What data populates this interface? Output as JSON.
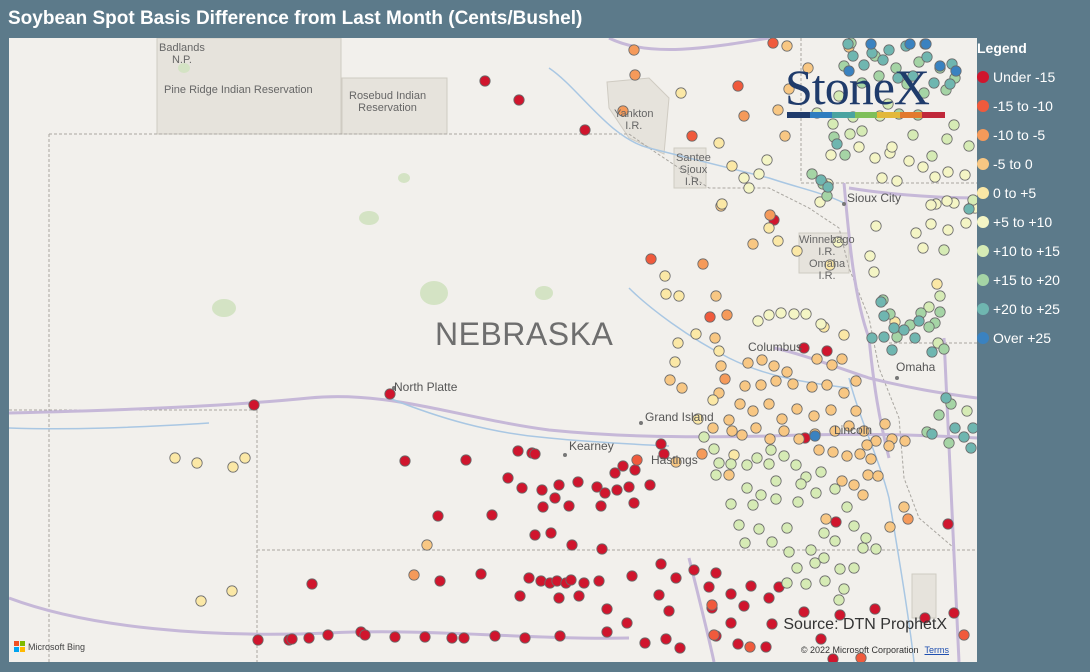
{
  "title": "Soybean Spot Basis Difference from Last Month (Cents/Bushel)",
  "map": {
    "state_label": "NEBRASKA",
    "cities": [
      "North Platte",
      "Grand Island",
      "Kearney",
      "Hastings",
      "Columbus",
      "Omaha",
      "Sioux City",
      "Lincoln"
    ],
    "places": [
      "Badlands\nN.P.",
      "Pine Ridge Indian Reservation",
      "Rosebud Indian\nReservation",
      "Yankton\nI.R.",
      "Santee\nSioux\nI.R.",
      "Winnebago\nI.R.",
      "Omaha\nI.R."
    ]
  },
  "logo": {
    "text": "StoneX",
    "stripe_colors": [
      "#1f3b6b",
      "#2f7dbf",
      "#4aa3a0",
      "#7fbf5a",
      "#e2b83a",
      "#e27a2e",
      "#c0283a"
    ]
  },
  "legend": {
    "title": "Legend",
    "items": [
      {
        "label": "Under -15",
        "color": "#d0152d"
      },
      {
        "label": "-15 to -10",
        "color": "#f05a3c"
      },
      {
        "label": "-10 to -5",
        "color": "#f59a5a"
      },
      {
        "label": "-5 to 0",
        "color": "#f8c783"
      },
      {
        "label": "0 to +5",
        "color": "#fbe8a6"
      },
      {
        "label": "+5 to +10",
        "color": "#f4f5c5"
      },
      {
        "label": "+10 to +15",
        "color": "#d6ebb5"
      },
      {
        "label": "+15 to +20",
        "color": "#a5d4a5"
      },
      {
        "label": "+20 to +25",
        "color": "#6fb6b0"
      },
      {
        "label": "Over +25",
        "color": "#3a82c0"
      }
    ]
  },
  "source": "Source: DTN ProphetX",
  "copyright": "© 2022 Microsoft Corporation",
  "terms": "Terms",
  "bing": "Microsoft Bing",
  "dots": [
    [
      476,
      43,
      0
    ],
    [
      510,
      62,
      0
    ],
    [
      576,
      92,
      0
    ],
    [
      245,
      367,
      0
    ],
    [
      381,
      356,
      0
    ],
    [
      396,
      423,
      0
    ],
    [
      457,
      422,
      0
    ],
    [
      509,
      413,
      0
    ],
    [
      523,
      415,
      0
    ],
    [
      526,
      416,
      0
    ],
    [
      499,
      440,
      0
    ],
    [
      513,
      450,
      0
    ],
    [
      533,
      452,
      0
    ],
    [
      550,
      447,
      0
    ],
    [
      569,
      444,
      0
    ],
    [
      588,
      449,
      0
    ],
    [
      614,
      428,
      0
    ],
    [
      626,
      432,
      0
    ],
    [
      652,
      406,
      0
    ],
    [
      606,
      435,
      0
    ],
    [
      534,
      469,
      0
    ],
    [
      546,
      460,
      0
    ],
    [
      560,
      468,
      0
    ],
    [
      592,
      468,
      0
    ],
    [
      596,
      455,
      0
    ],
    [
      608,
      452,
      0
    ],
    [
      620,
      449,
      0
    ],
    [
      625,
      465,
      0
    ],
    [
      641,
      447,
      0
    ],
    [
      655,
      416,
      0
    ],
    [
      429,
      478,
      0
    ],
    [
      483,
      477,
      0
    ],
    [
      526,
      497,
      0
    ],
    [
      542,
      495,
      0
    ],
    [
      563,
      507,
      0
    ],
    [
      593,
      511,
      0
    ],
    [
      303,
      546,
      0
    ],
    [
      431,
      543,
      0
    ],
    [
      472,
      536,
      0
    ],
    [
      520,
      540,
      0
    ],
    [
      532,
      543,
      0
    ],
    [
      541,
      545,
      0
    ],
    [
      548,
      543,
      0
    ],
    [
      557,
      545,
      0
    ],
    [
      562,
      542,
      0
    ],
    [
      575,
      545,
      0
    ],
    [
      590,
      543,
      0
    ],
    [
      623,
      538,
      0
    ],
    [
      652,
      526,
      0
    ],
    [
      667,
      540,
      0
    ],
    [
      685,
      532,
      0
    ],
    [
      700,
      549,
      0
    ],
    [
      707,
      535,
      0
    ],
    [
      722,
      556,
      0
    ],
    [
      735,
      568,
      0
    ],
    [
      742,
      548,
      0
    ],
    [
      760,
      560,
      0
    ],
    [
      770,
      549,
      0
    ],
    [
      511,
      558,
      0
    ],
    [
      550,
      560,
      0
    ],
    [
      570,
      558,
      0
    ],
    [
      598,
      571,
      0
    ],
    [
      650,
      557,
      0
    ],
    [
      660,
      573,
      0
    ],
    [
      703,
      570,
      0
    ],
    [
      722,
      585,
      0
    ],
    [
      763,
      586,
      0
    ],
    [
      795,
      574,
      0
    ],
    [
      831,
      577,
      0
    ],
    [
      866,
      571,
      0
    ],
    [
      916,
      580,
      0
    ],
    [
      945,
      575,
      0
    ],
    [
      249,
      602,
      0
    ],
    [
      280,
      602,
      0
    ],
    [
      283,
      601,
      0
    ],
    [
      300,
      600,
      0
    ],
    [
      319,
      597,
      0
    ],
    [
      352,
      594,
      0
    ],
    [
      356,
      597,
      0
    ],
    [
      386,
      599,
      0
    ],
    [
      416,
      599,
      0
    ],
    [
      443,
      600,
      0
    ],
    [
      455,
      600,
      0
    ],
    [
      486,
      598,
      0
    ],
    [
      516,
      600,
      0
    ],
    [
      551,
      598,
      0
    ],
    [
      598,
      594,
      0
    ],
    [
      618,
      585,
      0
    ],
    [
      636,
      605,
      0
    ],
    [
      657,
      601,
      0
    ],
    [
      671,
      610,
      0
    ],
    [
      707,
      598,
      0
    ],
    [
      729,
      606,
      0
    ],
    [
      757,
      609,
      0
    ],
    [
      812,
      601,
      0
    ],
    [
      824,
      621,
      0
    ],
    [
      765,
      182,
      0
    ],
    [
      795,
      310,
      0
    ],
    [
      818,
      313,
      0
    ],
    [
      827,
      484,
      0
    ],
    [
      939,
      486,
      0
    ],
    [
      796,
      400,
      0
    ],
    [
      764,
      5,
      1
    ],
    [
      683,
      98,
      1
    ],
    [
      729,
      48,
      1
    ],
    [
      642,
      221,
      1
    ],
    [
      701,
      279,
      1
    ],
    [
      628,
      422,
      1
    ],
    [
      703,
      567,
      1
    ],
    [
      741,
      609,
      1
    ],
    [
      852,
      620,
      1
    ],
    [
      955,
      597,
      1
    ],
    [
      705,
      597,
      1
    ],
    [
      625,
      12,
      2
    ],
    [
      626,
      37,
      2
    ],
    [
      735,
      78,
      2
    ],
    [
      761,
      177,
      2
    ],
    [
      694,
      226,
      2
    ],
    [
      718,
      277,
      2
    ],
    [
      716,
      341,
      2
    ],
    [
      405,
      537,
      2
    ],
    [
      693,
      416,
      2
    ],
    [
      899,
      481,
      2
    ],
    [
      614,
      73,
      2
    ],
    [
      778,
      8,
      3
    ],
    [
      840,
      9,
      3
    ],
    [
      799,
      30,
      3
    ],
    [
      780,
      51,
      3
    ],
    [
      769,
      72,
      3
    ],
    [
      776,
      98,
      3
    ],
    [
      712,
      168,
      3
    ],
    [
      744,
      206,
      3
    ],
    [
      707,
      258,
      3
    ],
    [
      706,
      300,
      3
    ],
    [
      673,
      350,
      3
    ],
    [
      661,
      342,
      3
    ],
    [
      712,
      328,
      3
    ],
    [
      739,
      325,
      3
    ],
    [
      753,
      322,
      3
    ],
    [
      765,
      328,
      3
    ],
    [
      778,
      334,
      3
    ],
    [
      808,
      321,
      3
    ],
    [
      823,
      327,
      3
    ],
    [
      833,
      321,
      3
    ],
    [
      736,
      348,
      3
    ],
    [
      752,
      347,
      3
    ],
    [
      767,
      343,
      3
    ],
    [
      784,
      346,
      3
    ],
    [
      803,
      349,
      3
    ],
    [
      818,
      347,
      3
    ],
    [
      835,
      355,
      3
    ],
    [
      847,
      343,
      3
    ],
    [
      710,
      355,
      3
    ],
    [
      720,
      382,
      3
    ],
    [
      731,
      366,
      3
    ],
    [
      744,
      373,
      3
    ],
    [
      760,
      366,
      3
    ],
    [
      773,
      381,
      3
    ],
    [
      788,
      371,
      3
    ],
    [
      805,
      378,
      3
    ],
    [
      822,
      372,
      3
    ],
    [
      847,
      373,
      3
    ],
    [
      733,
      397,
      3
    ],
    [
      747,
      390,
      3
    ],
    [
      761,
      401,
      3
    ],
    [
      775,
      393,
      3
    ],
    [
      790,
      401,
      3
    ],
    [
      806,
      396,
      3
    ],
    [
      826,
      393,
      3
    ],
    [
      840,
      388,
      3
    ],
    [
      855,
      393,
      3
    ],
    [
      867,
      403,
      3
    ],
    [
      876,
      386,
      3
    ],
    [
      883,
      401,
      3
    ],
    [
      896,
      403,
      3
    ],
    [
      810,
      412,
      3
    ],
    [
      824,
      414,
      3
    ],
    [
      838,
      418,
      3
    ],
    [
      851,
      416,
      3
    ],
    [
      858,
      407,
      3
    ],
    [
      862,
      421,
      3
    ],
    [
      880,
      408,
      3
    ],
    [
      859,
      437,
      3
    ],
    [
      845,
      447,
      3
    ],
    [
      833,
      443,
      3
    ],
    [
      854,
      457,
      3
    ],
    [
      817,
      481,
      3
    ],
    [
      881,
      489,
      3
    ],
    [
      895,
      469,
      3
    ],
    [
      720,
      437,
      3
    ],
    [
      723,
      393,
      3
    ],
    [
      704,
      390,
      3
    ],
    [
      667,
      424,
      3
    ],
    [
      418,
      507,
      3
    ],
    [
      869,
      438,
      3
    ],
    [
      672,
      55,
      4
    ],
    [
      710,
      105,
      4
    ],
    [
      723,
      128,
      4
    ],
    [
      713,
      166,
      4
    ],
    [
      760,
      190,
      4
    ],
    [
      769,
      203,
      4
    ],
    [
      788,
      213,
      4
    ],
    [
      821,
      227,
      4
    ],
    [
      656,
      238,
      4
    ],
    [
      657,
      256,
      4
    ],
    [
      670,
      258,
      4
    ],
    [
      669,
      305,
      4
    ],
    [
      666,
      324,
      4
    ],
    [
      710,
      313,
      4
    ],
    [
      687,
      296,
      4
    ],
    [
      815,
      289,
      4
    ],
    [
      835,
      297,
      4
    ],
    [
      886,
      284,
      4
    ],
    [
      166,
      420,
      4
    ],
    [
      188,
      425,
      4
    ],
    [
      224,
      429,
      4
    ],
    [
      236,
      420,
      4
    ],
    [
      192,
      563,
      4
    ],
    [
      223,
      553,
      4
    ],
    [
      704,
      362,
      4
    ],
    [
      689,
      381,
      4
    ],
    [
      725,
      417,
      4
    ],
    [
      928,
      246,
      4
    ],
    [
      750,
      136,
      5
    ],
    [
      758,
      122,
      5
    ],
    [
      740,
      150,
      5
    ],
    [
      735,
      140,
      5
    ],
    [
      749,
      283,
      5
    ],
    [
      760,
      277,
      5
    ],
    [
      772,
      275,
      5
    ],
    [
      785,
      276,
      5
    ],
    [
      797,
      276,
      5
    ],
    [
      812,
      286,
      5
    ],
    [
      873,
      140,
      5
    ],
    [
      881,
      115,
      5
    ],
    [
      888,
      143,
      5
    ],
    [
      900,
      123,
      5
    ],
    [
      914,
      129,
      5
    ],
    [
      926,
      139,
      5
    ],
    [
      939,
      134,
      5
    ],
    [
      956,
      137,
      5
    ],
    [
      945,
      165,
      5
    ],
    [
      938,
      163,
      5
    ],
    [
      927,
      166,
      5
    ],
    [
      964,
      167,
      5
    ],
    [
      922,
      186,
      5
    ],
    [
      939,
      192,
      5
    ],
    [
      957,
      185,
      5
    ],
    [
      966,
      170,
      5
    ],
    [
      907,
      195,
      5
    ],
    [
      914,
      210,
      5
    ],
    [
      867,
      188,
      5
    ],
    [
      861,
      218,
      5
    ],
    [
      865,
      234,
      5
    ],
    [
      829,
      204,
      5
    ],
    [
      811,
      164,
      5
    ],
    [
      819,
      146,
      5
    ],
    [
      883,
      109,
      5
    ],
    [
      866,
      120,
      5
    ],
    [
      922,
      167,
      5
    ],
    [
      850,
      109,
      5
    ],
    [
      822,
      117,
      5
    ],
    [
      695,
      399,
      6
    ],
    [
      705,
      411,
      6
    ],
    [
      710,
      425,
      6
    ],
    [
      707,
      437,
      6
    ],
    [
      722,
      426,
      6
    ],
    [
      738,
      427,
      6
    ],
    [
      748,
      420,
      6
    ],
    [
      762,
      412,
      6
    ],
    [
      760,
      426,
      6
    ],
    [
      775,
      418,
      6
    ],
    [
      787,
      427,
      6
    ],
    [
      797,
      439,
      6
    ],
    [
      812,
      434,
      6
    ],
    [
      826,
      451,
      6
    ],
    [
      807,
      455,
      6
    ],
    [
      789,
      464,
      6
    ],
    [
      767,
      461,
      6
    ],
    [
      752,
      457,
      6
    ],
    [
      738,
      450,
      6
    ],
    [
      744,
      467,
      6
    ],
    [
      722,
      466,
      6
    ],
    [
      730,
      487,
      6
    ],
    [
      736,
      505,
      6
    ],
    [
      750,
      491,
      6
    ],
    [
      763,
      504,
      6
    ],
    [
      778,
      490,
      6
    ],
    [
      780,
      514,
      6
    ],
    [
      802,
      512,
      6
    ],
    [
      815,
      495,
      6
    ],
    [
      826,
      503,
      6
    ],
    [
      806,
      525,
      6
    ],
    [
      788,
      530,
      6
    ],
    [
      778,
      545,
      6
    ],
    [
      797,
      546,
      6
    ],
    [
      815,
      520,
      6
    ],
    [
      831,
      531,
      6
    ],
    [
      816,
      543,
      6
    ],
    [
      835,
      551,
      6
    ],
    [
      830,
      562,
      6
    ],
    [
      854,
      510,
      6
    ],
    [
      867,
      511,
      6
    ],
    [
      845,
      530,
      6
    ],
    [
      857,
      500,
      6
    ],
    [
      767,
      443,
      6
    ],
    [
      792,
      446,
      6
    ],
    [
      838,
      469,
      6
    ],
    [
      845,
      488,
      6
    ],
    [
      935,
      212,
      6
    ],
    [
      931,
      258,
      6
    ],
    [
      920,
      269,
      6
    ],
    [
      923,
      118,
      6
    ],
    [
      938,
      101,
      6
    ],
    [
      960,
      108,
      6
    ],
    [
      853,
      93,
      6
    ],
    [
      871,
      78,
      6
    ],
    [
      830,
      58,
      6
    ],
    [
      844,
      79,
      6
    ],
    [
      879,
      66,
      6
    ],
    [
      824,
      86,
      6
    ],
    [
      808,
      75,
      6
    ],
    [
      841,
      96,
      6
    ],
    [
      904,
      97,
      6
    ],
    [
      945,
      87,
      6
    ],
    [
      964,
      162,
      6
    ],
    [
      929,
      305,
      6
    ],
    [
      958,
      373,
      6
    ],
    [
      842,
      5,
      7
    ],
    [
      866,
      18,
      7
    ],
    [
      887,
      30,
      7
    ],
    [
      910,
      24,
      7
    ],
    [
      931,
      30,
      7
    ],
    [
      946,
      40,
      7
    ],
    [
      835,
      28,
      7
    ],
    [
      853,
      45,
      7
    ],
    [
      870,
      38,
      7
    ],
    [
      898,
      46,
      7
    ],
    [
      915,
      55,
      7
    ],
    [
      937,
      52,
      7
    ],
    [
      890,
      76,
      7
    ],
    [
      909,
      77,
      7
    ],
    [
      825,
      99,
      7
    ],
    [
      836,
      117,
      7
    ],
    [
      818,
      158,
      7
    ],
    [
      814,
      146,
      7
    ],
    [
      803,
      136,
      7
    ],
    [
      874,
      262,
      7
    ],
    [
      881,
      276,
      7
    ],
    [
      888,
      299,
      7
    ],
    [
      901,
      287,
      7
    ],
    [
      912,
      275,
      7
    ],
    [
      926,
      285,
      7
    ],
    [
      931,
      274,
      7
    ],
    [
      920,
      289,
      7
    ],
    [
      935,
      311,
      7
    ],
    [
      930,
      377,
      7
    ],
    [
      942,
      366,
      7
    ],
    [
      918,
      394,
      7
    ],
    [
      940,
      405,
      7
    ],
    [
      839,
      6,
      8
    ],
    [
      863,
      15,
      8
    ],
    [
      880,
      12,
      8
    ],
    [
      897,
      8,
      8
    ],
    [
      916,
      6,
      8
    ],
    [
      844,
      18,
      8
    ],
    [
      855,
      27,
      8
    ],
    [
      874,
      22,
      8
    ],
    [
      889,
      40,
      8
    ],
    [
      904,
      38,
      8
    ],
    [
      925,
      45,
      8
    ],
    [
      943,
      26,
      8
    ],
    [
      828,
      106,
      8
    ],
    [
      812,
      142,
      8
    ],
    [
      819,
      149,
      8
    ],
    [
      872,
      264,
      8
    ],
    [
      875,
      278,
      8
    ],
    [
      885,
      290,
      8
    ],
    [
      875,
      299,
      8
    ],
    [
      895,
      292,
      8
    ],
    [
      906,
      300,
      8
    ],
    [
      883,
      312,
      8
    ],
    [
      863,
      300,
      8
    ],
    [
      910,
      283,
      8
    ],
    [
      923,
      314,
      8
    ],
    [
      937,
      360,
      8
    ],
    [
      923,
      396,
      8
    ],
    [
      955,
      399,
      8
    ],
    [
      964,
      390,
      8
    ],
    [
      962,
      410,
      8
    ],
    [
      946,
      390,
      8
    ],
    [
      960,
      171,
      8
    ],
    [
      941,
      46,
      8
    ],
    [
      918,
      19,
      8
    ],
    [
      840,
      33,
      9
    ],
    [
      862,
      6,
      9
    ],
    [
      901,
      6,
      9
    ],
    [
      917,
      6,
      9
    ],
    [
      806,
      398,
      9
    ],
    [
      947,
      33,
      9
    ],
    [
      931,
      28,
      9
    ]
  ]
}
